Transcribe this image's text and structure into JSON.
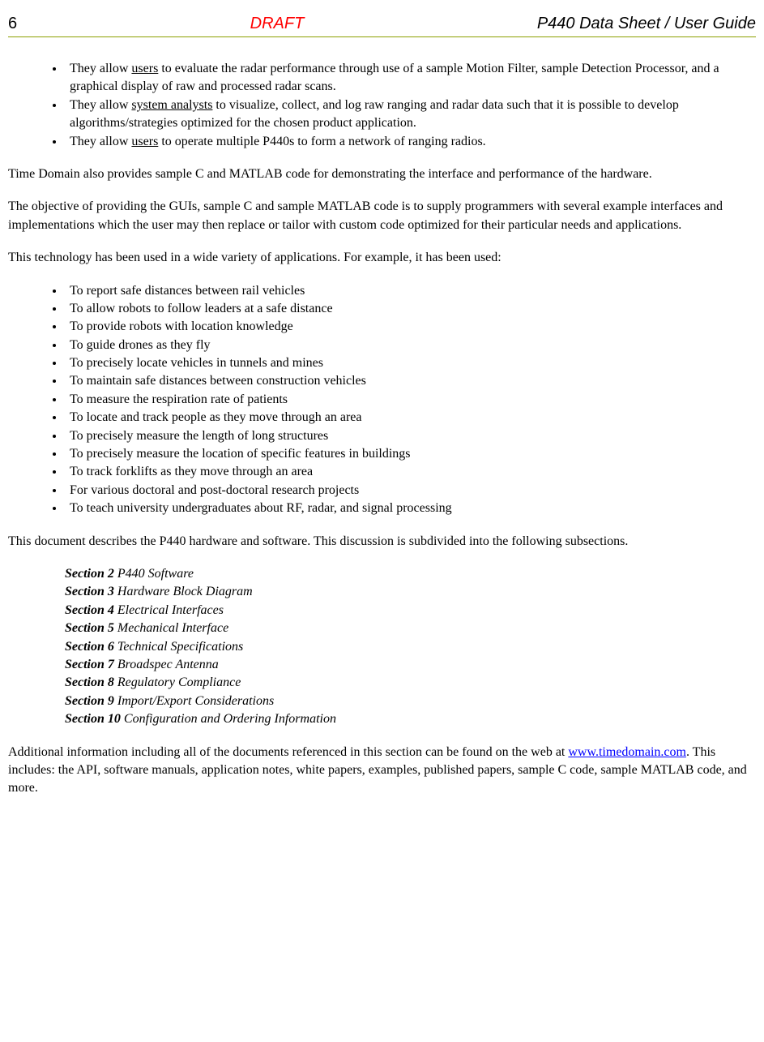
{
  "header": {
    "page_number": "6",
    "draft_label": "DRAFT",
    "doc_title": "P440 Data Sheet / User Guide"
  },
  "bullets1": {
    "item0_pre": "They allow ",
    "item0_u": "users",
    "item0_post": " to evaluate the radar performance through use of a sample Motion Filter, sample Detection Processor, and a graphical display of raw and processed radar scans.",
    "item1_pre": "They allow ",
    "item1_u": "system analysts",
    "item1_post": " to visualize, collect, and log raw ranging and radar data such that it is possible to develop algorithms/strategies optimized for the chosen product application.",
    "item2_pre": "They allow ",
    "item2_u": "users",
    "item2_post": " to operate multiple P440s to form a network of ranging radios."
  },
  "para1": "Time Domain also provides sample C and MATLAB code for demonstrating the interface and performance of the hardware.",
  "para2": "The objective of providing the GUIs, sample C and sample MATLAB code is to supply programmers with several example interfaces and implementations which the user may then replace or tailor with custom code optimized for their particular needs and applications.",
  "para3": "This technology has been used in a wide variety of applications.  For example, it has been used:",
  "bullets2": [
    "To report safe distances between rail vehicles",
    "To allow robots to follow leaders at a safe distance",
    "To provide robots with location knowledge",
    "To guide drones as they fly",
    "To precisely locate vehicles in tunnels and mines",
    "To maintain safe distances between construction vehicles",
    "To measure the respiration rate of patients",
    "To locate and track people as they move through an area",
    "To precisely measure the length of long structures",
    "To precisely measure the location of specific features in buildings",
    "To track forklifts as they move through an area",
    "For various doctoral and post-doctoral research projects",
    "To teach university undergraduates about RF, radar, and signal processing"
  ],
  "para4": "This document describes the P440 hardware and software.  This discussion is subdivided into the following subsections.",
  "sections": [
    {
      "label": "Section 2",
      "title": " P440 Software"
    },
    {
      "label": "Section 3",
      "title": " Hardware Block Diagram"
    },
    {
      "label": "Section 4",
      "title": " Electrical Interfaces"
    },
    {
      "label": "Section 5",
      "title": " Mechanical Interface"
    },
    {
      "label": "Section 6",
      "title": " Technical Specifications"
    },
    {
      "label": "Section 7",
      "title": " Broadspec Antenna"
    },
    {
      "label": "Section 8",
      "title": " Regulatory Compliance"
    },
    {
      "label": "Section 9",
      "title": " Import/Export Considerations"
    },
    {
      "label": "Section 10",
      "title": " Configuration and Ordering Information"
    }
  ],
  "para5_pre": "Additional information including all of the documents referenced in this section can be found on the web at ",
  "para5_link": "www.timedomain.com",
  "para5_post": ".  This includes: the API, software manuals, application notes, white papers, examples, published papers, sample C code, sample MATLAB code, and more."
}
